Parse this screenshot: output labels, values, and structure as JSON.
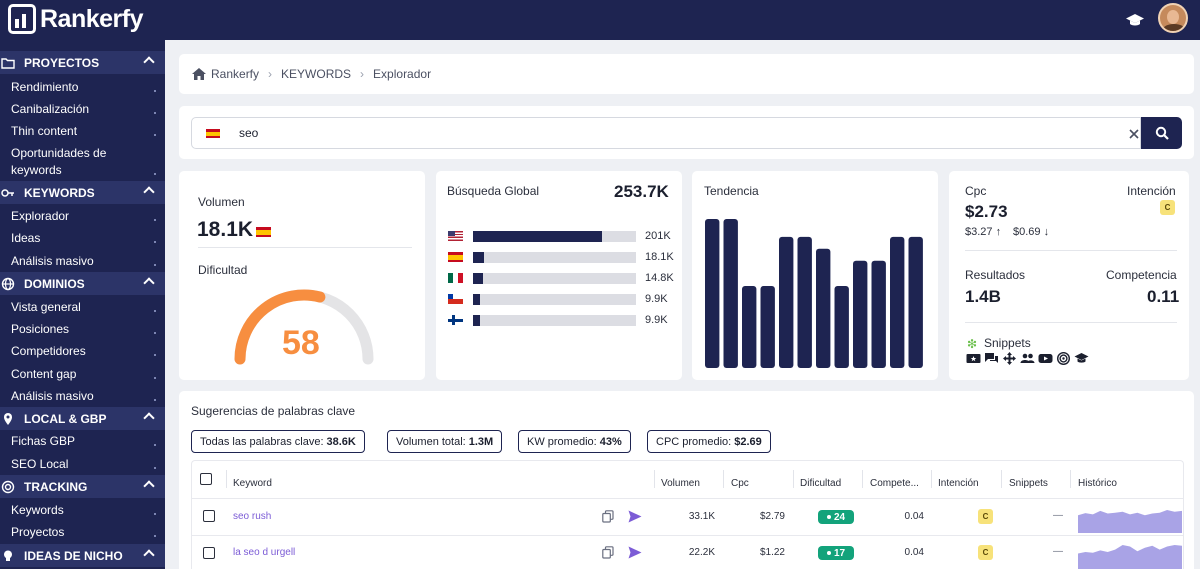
{
  "app": {
    "name": "Rankerfy"
  },
  "sidebar": {
    "sections": [
      {
        "title": "PROYECTOS",
        "icon": "folder-icon",
        "items": [
          "Rendimiento",
          "Canibalización",
          "Thin content",
          "Oportunidades de keywords"
        ]
      },
      {
        "title": "KEYWORDS",
        "icon": "key-icon",
        "items": [
          "Explorador",
          "Ideas",
          "Análisis masivo"
        ]
      },
      {
        "title": "DOMINIOS",
        "icon": "globe-icon",
        "items": [
          "Vista general",
          "Posiciones",
          "Competidores",
          "Content gap",
          "Análisis masivo"
        ]
      },
      {
        "title": "LOCAL & GBP",
        "icon": "map-pin-icon",
        "items": [
          "Fichas GBP",
          "SEO Local"
        ]
      },
      {
        "title": "TRACKING",
        "icon": "target-icon",
        "items": [
          "Keywords",
          "Proyectos"
        ]
      },
      {
        "title": "IDEAS DE NICHO",
        "icon": "lightbulb-icon",
        "items": []
      }
    ]
  },
  "breadcrumb": [
    "Rankerfy",
    "KEYWORDS",
    "Explorador"
  ],
  "search": {
    "value": "seo",
    "flag": "es"
  },
  "volume": {
    "label": "Volumen",
    "value": "18.1K"
  },
  "difficulty": {
    "label": "Dificultad",
    "value": "58",
    "fraction": 0.58,
    "color": "#f78e40"
  },
  "global": {
    "label": "Búsqueda Global",
    "total": "253.7K",
    "rows": [
      {
        "flag": "us",
        "value": "201K",
        "fraction": 0.79
      },
      {
        "flag": "es",
        "value": "18.1K",
        "fraction": 0.07
      },
      {
        "flag": "mx",
        "value": "14.8K",
        "fraction": 0.06
      },
      {
        "flag": "cl",
        "value": "9.9K",
        "fraction": 0.04
      },
      {
        "flag": "fi",
        "value": "9.9K",
        "fraction": 0.04
      }
    ]
  },
  "trend": {
    "label": "Tendencia",
    "values": [
      100,
      100,
      55,
      55,
      88,
      88,
      80,
      55,
      72,
      72,
      88,
      88
    ]
  },
  "cpc": {
    "label": "Cpc",
    "value": "$2.73",
    "high": "$3.27",
    "low": "$0.69",
    "intent_label": "Intención",
    "intent": "C"
  },
  "results": {
    "label": "Resultados",
    "value": "1.4B"
  },
  "competition": {
    "label": "Competencia",
    "value": "0.11"
  },
  "snippets": {
    "label": "Snippets",
    "icons": [
      "ticket-icon",
      "chat-icon",
      "move-icon",
      "people-icon",
      "video-icon",
      "rss-icon",
      "graduation-cap-icon"
    ]
  },
  "suggestions": {
    "title": "Sugerencias de palabras clave",
    "pills": [
      {
        "label": "Todas las palabras clave:",
        "value": "38.6K"
      },
      {
        "label": "Volumen total:",
        "value": "1.3M"
      },
      {
        "label": "KW promedio:",
        "value": "43%"
      },
      {
        "label": "CPC promedio:",
        "value": "$2.69"
      }
    ],
    "columns": [
      "Keyword",
      "Volumen",
      "Cpc",
      "Dificultad",
      "Compete...",
      "Intención",
      "Snippets",
      "Histórico"
    ],
    "rows": [
      {
        "keyword": "seo rush",
        "volume": "33.1K",
        "cpc": "$2.79",
        "kd": "24",
        "competition": "0.04",
        "intent": "C",
        "snippets": "—",
        "history": [
          40,
          45,
          42,
          50,
          44,
          46,
          48,
          42,
          46,
          40,
          44,
          46,
          52,
          48,
          50
        ]
      },
      {
        "keyword": "la seo d urgell",
        "volume": "22.2K",
        "cpc": "$1.22",
        "kd": "17",
        "competition": "0.04",
        "intent": "C",
        "snippets": "—",
        "history": [
          40,
          44,
          42,
          48,
          44,
          50,
          62,
          58,
          46,
          55,
          60,
          50,
          58,
          62,
          60
        ]
      }
    ]
  },
  "colors": {
    "navy": "#1e2451",
    "accent": "#7c5cd6",
    "kd_green": "#13a37b",
    "spark": "#a9a3e6"
  }
}
